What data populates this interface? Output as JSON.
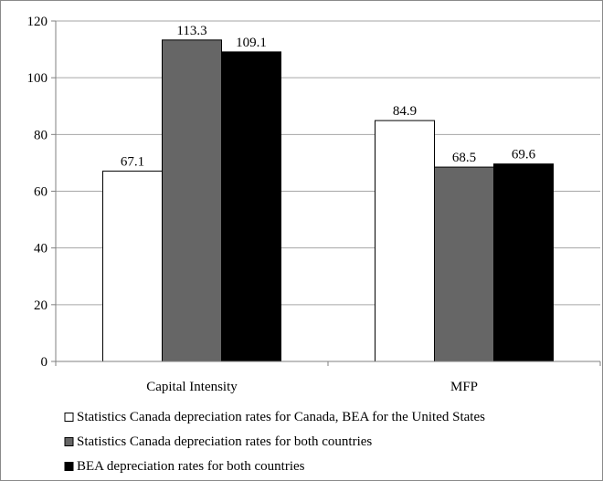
{
  "chart_data": {
    "type": "bar",
    "categories": [
      "Capital Intensity",
      "MFP"
    ],
    "series": [
      {
        "name": "Statistics Canada depreciation rates for Canada, BEA for the United States",
        "values": [
          67.1,
          84.9
        ],
        "color": "#ffffff"
      },
      {
        "name": "Statistics Canada depreciation rates for both countries",
        "values": [
          113.3,
          68.5
        ],
        "color": "#666666"
      },
      {
        "name": "BEA depreciation rates for both countries",
        "values": [
          109.1,
          69.6
        ],
        "color": "#000000"
      }
    ],
    "data_labels": [
      [
        "67.1",
        "84.9"
      ],
      [
        "113.3",
        "68.5"
      ],
      [
        "109.1",
        "69.6"
      ]
    ],
    "ylim": [
      0,
      120
    ],
    "yticks": [
      "0",
      "20",
      "40",
      "60",
      "80",
      "100",
      "120"
    ],
    "grid": true,
    "legend_position": "bottom",
    "title": "",
    "xlabel": "",
    "ylabel": ""
  }
}
